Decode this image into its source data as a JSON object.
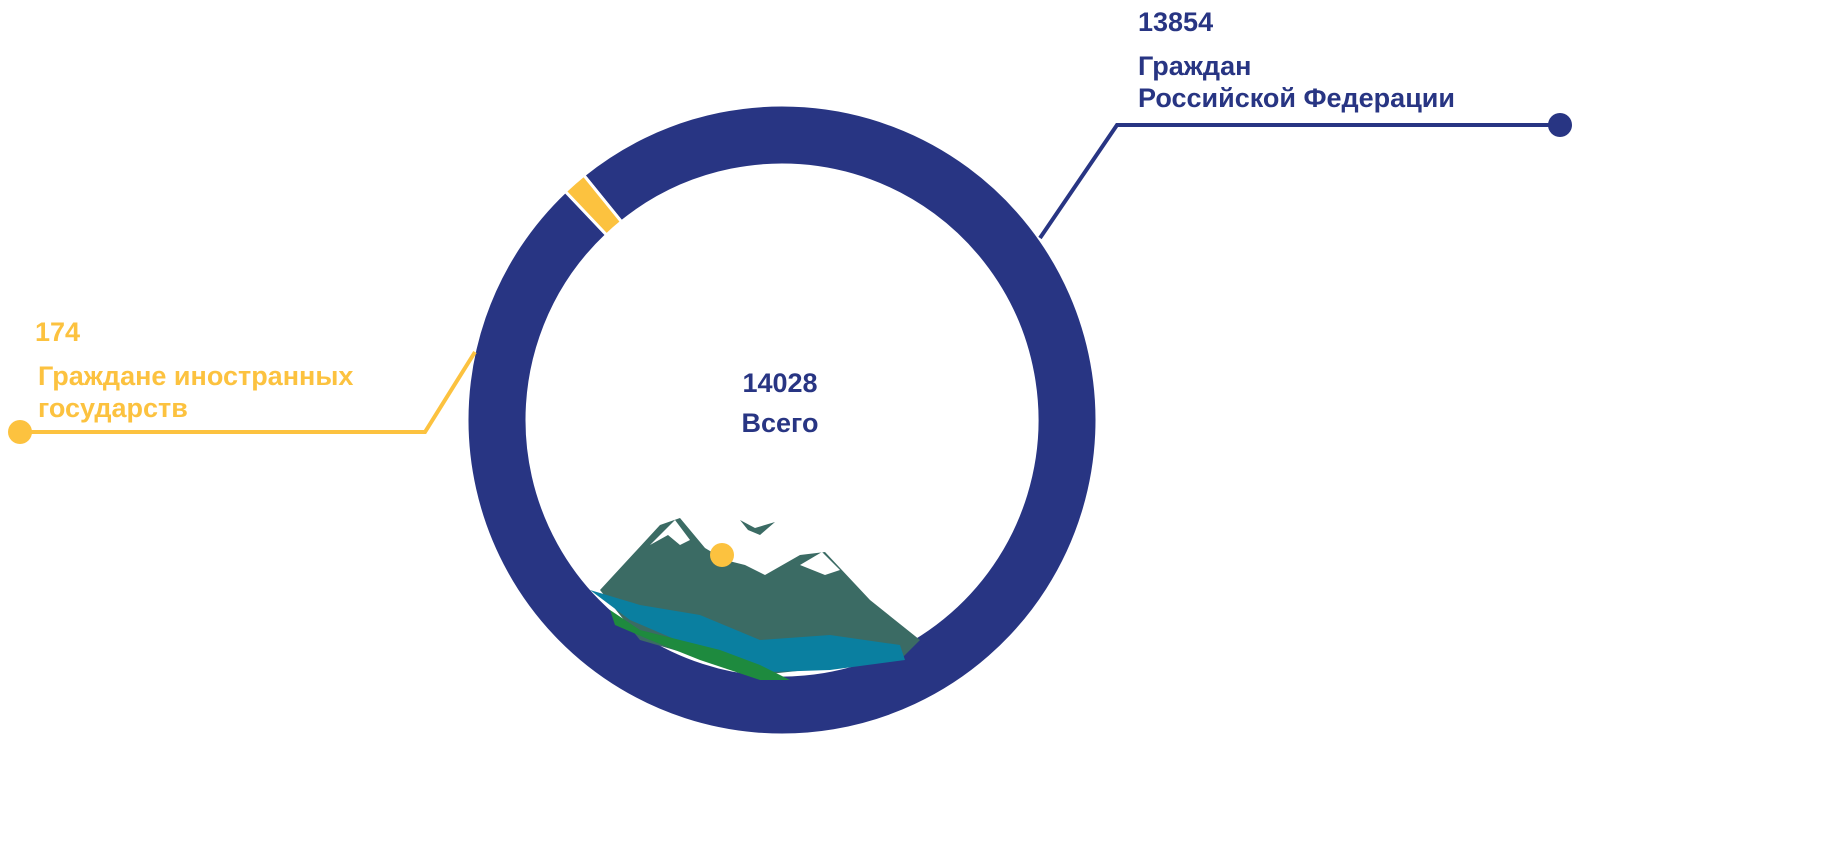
{
  "chart_data": {
    "type": "donut",
    "categories": [
      "Граждан\nРоссийской Федерации",
      "Граждане иностранных\nгосударств"
    ],
    "values": [
      13854,
      174
    ],
    "colors": [
      "#283583",
      "#fcc23f"
    ],
    "total": {
      "value": 14028,
      "label": "Всего"
    }
  }
}
